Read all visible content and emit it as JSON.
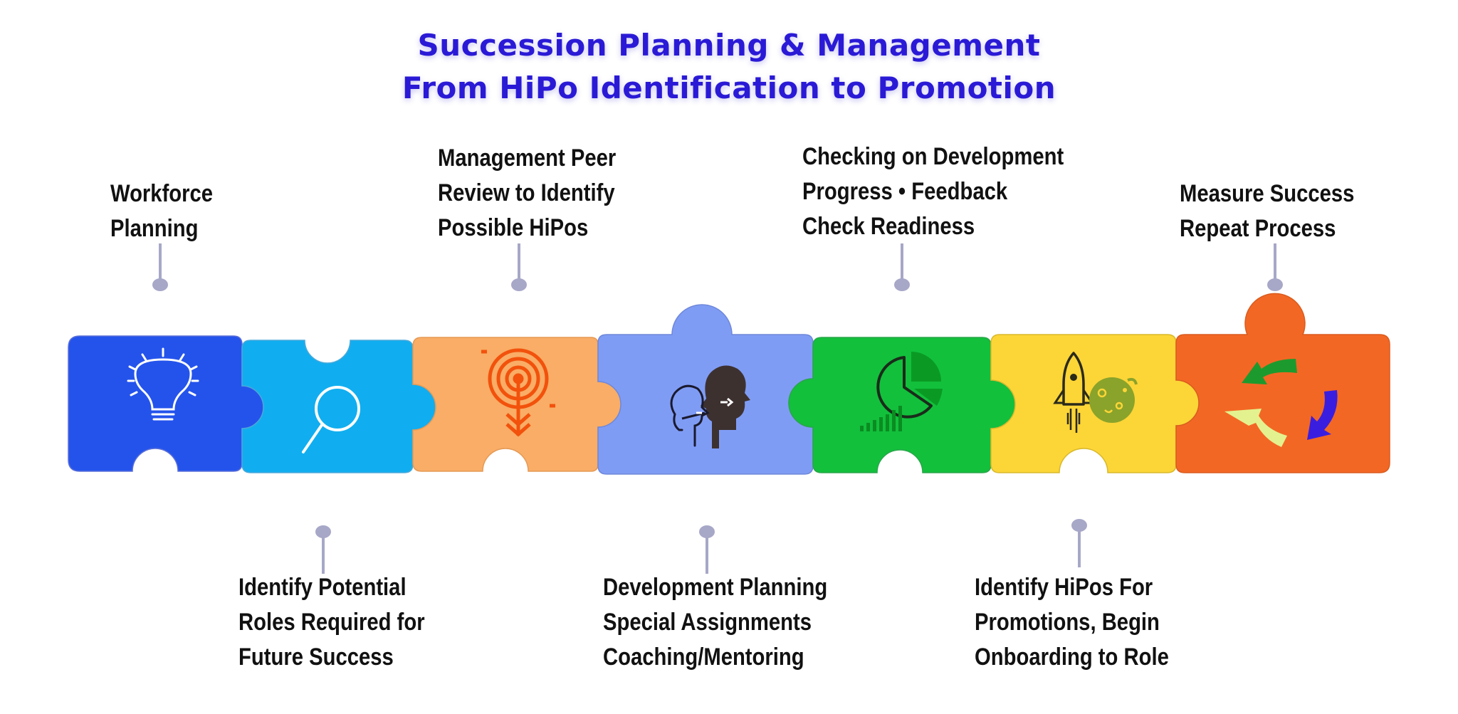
{
  "title": {
    "line1": "Succession Planning & Management",
    "line2": "From HiPo Identification to Promotion"
  },
  "colors": {
    "title": "#2a1ad6",
    "piece_workforce": "#2453ec",
    "piece_roles": "#10aef0",
    "piece_review": "#f9ad66",
    "piece_development": "#7f9cf5",
    "piece_progress": "#12c03c",
    "piece_promotion": "#fcd537",
    "piece_measure": "#f36724",
    "connector": "#a7a7c8"
  },
  "steps": [
    {
      "id": "workforce",
      "lines": [
        "Workforce",
        "Planning"
      ],
      "position": "top",
      "icon": "lightbulb-icon"
    },
    {
      "id": "roles",
      "lines": [
        "Identify Potential",
        "Roles Required for",
        "Future Success"
      ],
      "position": "bottom",
      "icon": "magnifier-icon"
    },
    {
      "id": "review",
      "lines": [
        "Management Peer",
        "Review to Identify",
        "Possible HiPos"
      ],
      "position": "top",
      "icon": "target-icon"
    },
    {
      "id": "development",
      "lines": [
        "Development Planning",
        "Special Assignments",
        "Coaching/Mentoring"
      ],
      "position": "bottom",
      "icon": "mentoring-heads-icon"
    },
    {
      "id": "progress",
      "lines": [
        "Checking on Development",
        "Progress • Feedback",
        "Check Readiness"
      ],
      "position": "top",
      "icon": "pie-chart-icon"
    },
    {
      "id": "promotion",
      "lines": [
        "Identify HiPos For",
        "Promotions, Begin",
        "Onboarding to Role"
      ],
      "position": "bottom",
      "icon": "rocket-moon-icon"
    },
    {
      "id": "measure",
      "lines": [
        "Measure Success",
        "Repeat Process"
      ],
      "position": "top",
      "icon": "cycle-arrows-icon"
    }
  ]
}
